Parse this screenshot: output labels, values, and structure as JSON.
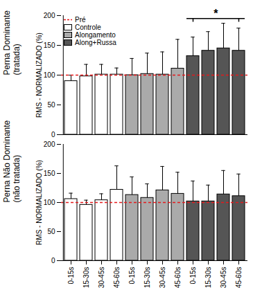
{
  "chart_data": [
    {
      "type": "bar",
      "title": "Perna Dominante\n(tratada)",
      "y_label": "RMS - NORMALIZADO (%)",
      "categories": [
        "0-15s",
        "15-30s",
        "30-45s",
        "45-60s",
        "0-15s",
        "15-30s",
        "30-45s",
        "45-60s",
        "0-15s",
        "15-30s",
        "30-45s",
        "45-60s"
      ],
      "series": [
        {
          "name": "Controle",
          "color": "#ffffff",
          "values": [
            90,
            98,
            101,
            101,
            null,
            null,
            null,
            null,
            null,
            null,
            null,
            null
          ],
          "errors": [
            10,
            20,
            17,
            11,
            null,
            null,
            null,
            null,
            null,
            null,
            null,
            null
          ]
        },
        {
          "name": "Alongamento",
          "color": "#aaaaaa",
          "values": [
            null,
            null,
            null,
            null,
            100,
            102,
            101,
            111,
            null,
            null,
            null,
            null
          ],
          "errors": [
            null,
            null,
            null,
            null,
            28,
            35,
            38,
            49,
            null,
            null,
            null,
            null
          ]
        },
        {
          "name": "Along+Russa",
          "color": "#555555",
          "values": [
            null,
            null,
            null,
            null,
            null,
            null,
            null,
            null,
            132,
            141,
            145,
            141
          ],
          "errors": [
            null,
            null,
            null,
            null,
            null,
            null,
            null,
            null,
            32,
            32,
            42,
            38
          ]
        }
      ],
      "reference_line": {
        "name": "Pré",
        "value": 100,
        "color": "#e41a1c",
        "line_style": "dashed"
      },
      "annotations": [
        {
          "text": "*",
          "from": 8,
          "to": 11
        }
      ],
      "ylim": [
        0,
        200
      ],
      "yticks": [
        0,
        50,
        100,
        150,
        200
      ],
      "legend": "top-left",
      "tick_labels": "y"
    },
    {
      "type": "bar",
      "title": "Perna Não Dominante\n(não tratada)",
      "y_label": "RMS - NORMALIZADO (%)",
      "categories": [
        "0-15s",
        "15-30s",
        "30-45s",
        "45-60s",
        "0-15s",
        "15-30s",
        "30-45s",
        "45-60s",
        "0-15s",
        "15-30s",
        "30-45s",
        "45-60s"
      ],
      "series": [
        {
          "name": "Controle",
          "color": "#ffffff",
          "values": [
            106,
            96,
            104,
            122,
            null,
            null,
            null,
            null,
            null,
            null,
            null,
            null
          ],
          "errors": [
            10,
            8,
            11,
            41,
            null,
            null,
            null,
            null,
            null,
            null,
            null,
            null
          ]
        },
        {
          "name": "Alongamento",
          "color": "#aaaaaa",
          "values": [
            null,
            null,
            null,
            null,
            113,
            108,
            121,
            115,
            null,
            null,
            null,
            null
          ],
          "errors": [
            null,
            null,
            null,
            null,
            31,
            24,
            41,
            37,
            null,
            null,
            null,
            null
          ]
        },
        {
          "name": "Along+Russa",
          "color": "#555555",
          "values": [
            null,
            null,
            null,
            null,
            null,
            null,
            null,
            null,
            102,
            102,
            114,
            111
          ],
          "errors": [
            null,
            null,
            null,
            null,
            null,
            null,
            null,
            null,
            35,
            28,
            41,
            38
          ]
        }
      ],
      "reference_line": {
        "name": "Pré",
        "value": 100,
        "color": "#e41a1c",
        "line_style": "dashed"
      },
      "ylim": [
        0,
        200
      ],
      "yticks": [
        0,
        50,
        100,
        150,
        200
      ]
    }
  ]
}
